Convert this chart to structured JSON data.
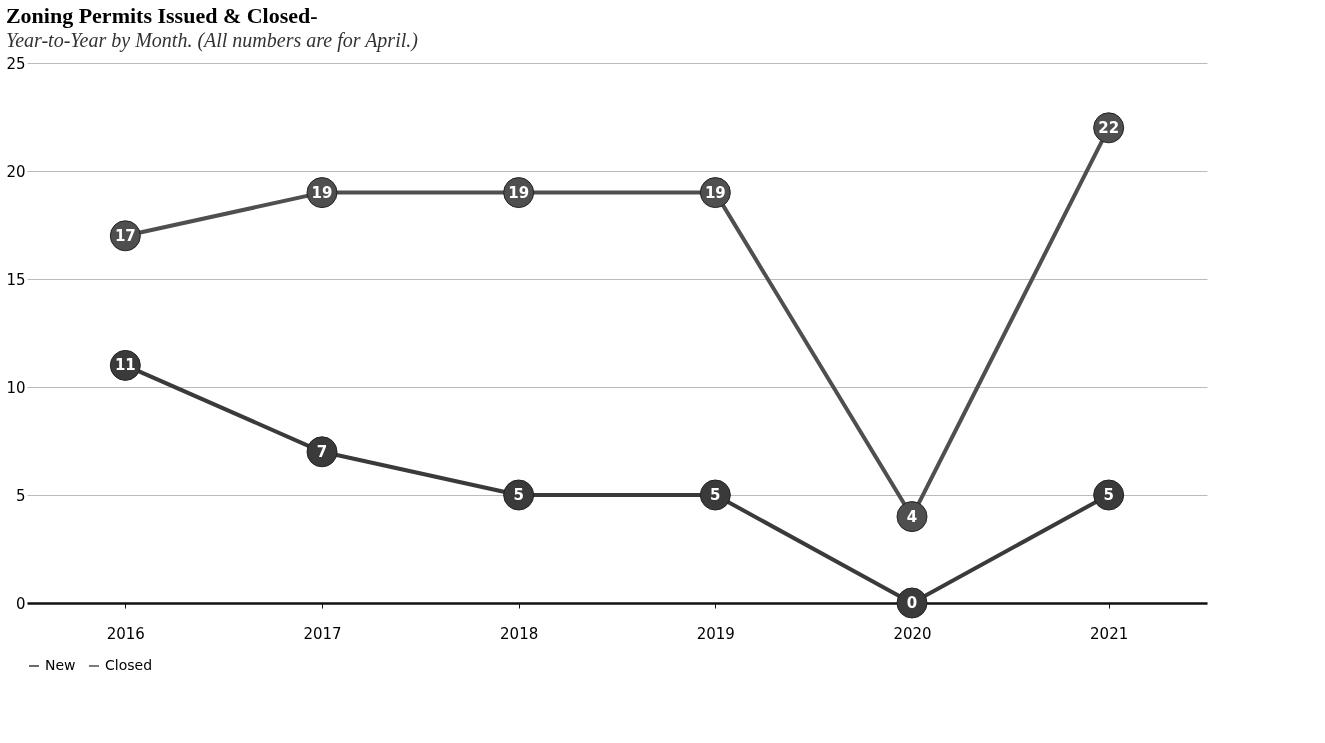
{
  "chart_data": {
    "type": "line",
    "title": "Zoning Permits Issued & Closed-",
    "subtitle": "Year-to-Year by Month.  (All numbers are for April.)",
    "categories": [
      "2016",
      "2017",
      "2018",
      "2019",
      "2020",
      "2021"
    ],
    "series": [
      {
        "name": "New",
        "color": "#3a3a3a",
        "values": [
          11,
          7,
          5,
          5,
          0,
          5
        ]
      },
      {
        "name": "Closed",
        "color": "#4f4f4f",
        "values": [
          17,
          19,
          19,
          19,
          4,
          22
        ]
      }
    ],
    "ylim": [
      0,
      25
    ],
    "yticks": [
      0,
      5,
      10,
      15,
      20,
      25
    ],
    "grid": "y",
    "legend": "bottom",
    "marker": "circle",
    "line_style": "solid",
    "data_labels": true
  }
}
